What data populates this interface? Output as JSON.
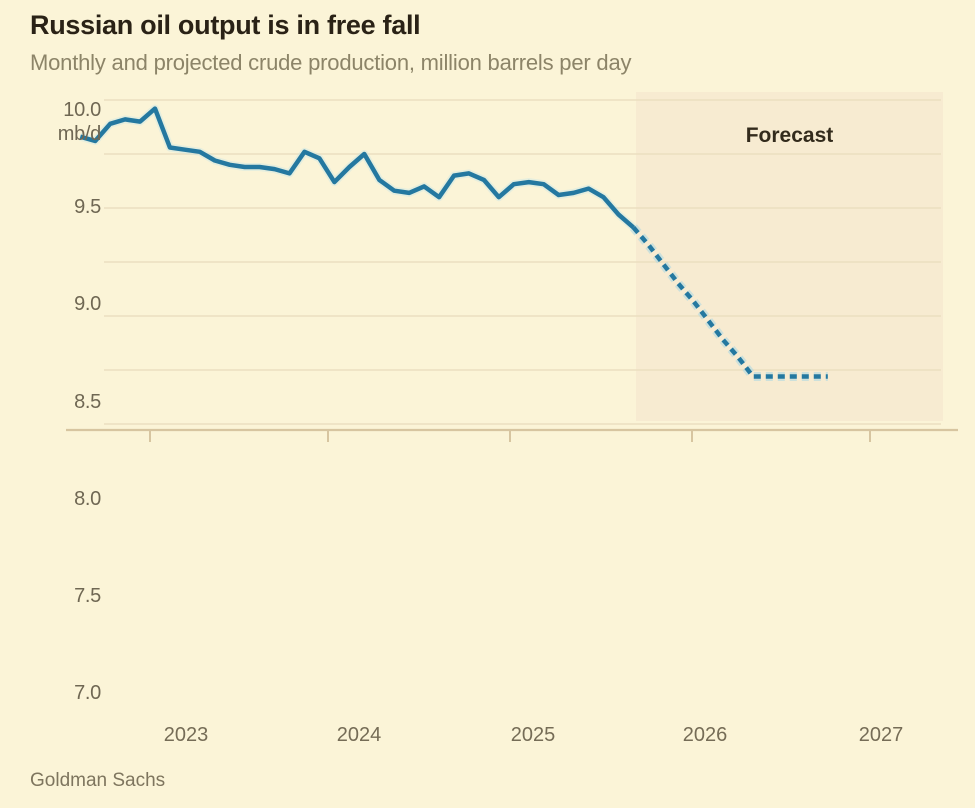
{
  "title": "Russian oil output is in free fall",
  "subtitle": "Monthly and projected crude production, million barrels per day",
  "unit_label": "mb/d",
  "forecast_label": "Forecast",
  "source": "Goldman Sachs",
  "colors": {
    "background": "#fbf4d7",
    "forecast_band": "#f7ebd1",
    "gridline": "#ebdfc0",
    "axis_line": "#d7c5a0",
    "line_blue": "#2478a0",
    "dash_halo": "rgba(170,215,227,0.55)",
    "title_text": "#2a2216",
    "subtitle_text": "#8c8468",
    "tick_text": "#6f6753"
  },
  "y_axis": {
    "tick_labels": [
      "10.0",
      "9.5",
      "9.0",
      "8.5",
      "8.0",
      "7.5",
      "7.0"
    ]
  },
  "x_axis": {
    "tick_labels": [
      "2023",
      "2024",
      "2025",
      "2026",
      "2027"
    ]
  },
  "chart_data": {
    "type": "line",
    "title": "Russian oil output is in free fall",
    "subtitle": "Monthly and projected crude production, million barrels per day",
    "xlabel": "",
    "ylabel": "million barrels per day (mb/d)",
    "x_unit": "month",
    "x_range": [
      "2022-08",
      "2026-10"
    ],
    "ylim_gridlines": [
      8.5,
      10.0
    ],
    "gridline_values": [
      10.0,
      9.75,
      9.5,
      9.25,
      9.0,
      8.75,
      8.5
    ],
    "legend": "none",
    "annotations": [
      {
        "text": "Forecast",
        "region": [
          "2025-09",
          "2026-10"
        ]
      }
    ],
    "source": "Goldman Sachs",
    "series": [
      {
        "name": "Monthly crude production",
        "style": "solid",
        "start_month": "2022-08",
        "start_index": -5,
        "values": [
          9.83,
          9.81,
          9.89,
          9.91,
          9.9,
          9.96,
          9.78,
          9.77,
          9.76,
          9.72,
          9.7,
          9.69,
          9.69,
          9.68,
          9.66,
          9.76,
          9.73,
          9.62,
          9.69,
          9.75,
          9.63,
          9.58,
          9.57,
          9.6,
          9.55,
          9.65,
          9.66,
          9.63,
          9.55,
          9.61,
          9.62,
          9.61,
          9.56,
          9.57,
          9.59,
          9.55,
          9.47,
          9.41
        ]
      },
      {
        "name": "Projected crude production (forecast)",
        "style": "dashed",
        "start_month": "2025-09",
        "start_index": 32,
        "values": [
          9.41,
          9.33,
          9.24,
          9.15,
          9.07,
          8.98,
          8.89,
          8.81,
          8.72,
          8.72,
          8.72,
          8.72,
          8.72,
          8.72
        ]
      }
    ]
  }
}
